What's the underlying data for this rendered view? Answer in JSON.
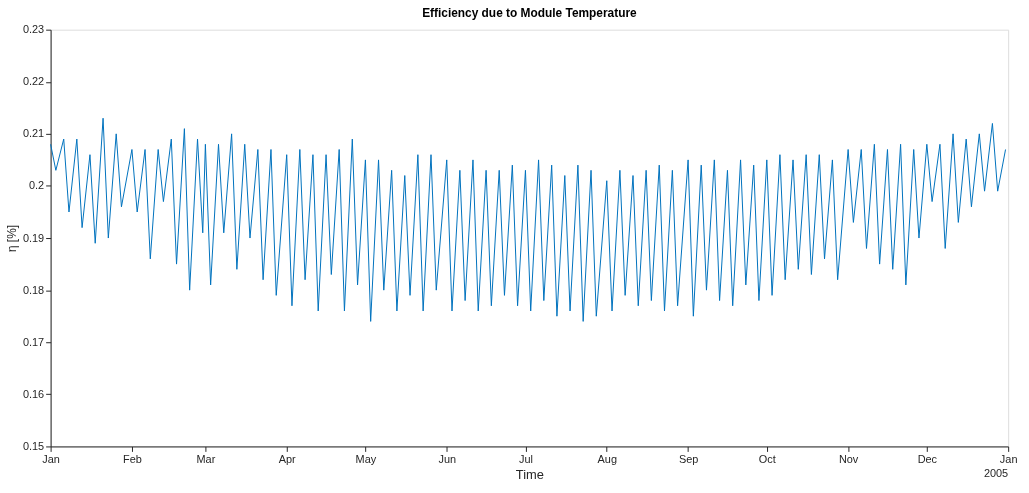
{
  "chart_data": {
    "type": "line",
    "title": "Efficiency due to Module Temperature",
    "xlabel": "Time",
    "ylabel": "η [%]",
    "annotations": [
      "2005"
    ],
    "x": [
      "2005-01-01",
      "2005-01-03",
      "2005-01-06",
      "2005-01-08",
      "2005-01-11",
      "2005-01-13",
      "2005-01-16",
      "2005-01-18",
      "2005-01-21",
      "2005-01-23",
      "2005-01-26",
      "2005-01-28",
      "2005-02-01",
      "2005-02-03",
      "2005-02-06",
      "2005-02-08",
      "2005-02-11",
      "2005-02-13",
      "2005-02-16",
      "2005-02-18",
      "2005-02-21",
      "2005-02-23",
      "2005-02-26",
      "2005-02-28",
      "2005-03-01",
      "2005-03-03",
      "2005-03-06",
      "2005-03-08",
      "2005-03-11",
      "2005-03-13",
      "2005-03-16",
      "2005-03-18",
      "2005-03-21",
      "2005-03-23",
      "2005-03-26",
      "2005-03-28",
      "2005-04-01",
      "2005-04-03",
      "2005-04-06",
      "2005-04-08",
      "2005-04-11",
      "2005-04-13",
      "2005-04-16",
      "2005-04-18",
      "2005-04-21",
      "2005-04-23",
      "2005-04-26",
      "2005-04-28",
      "2005-05-01",
      "2005-05-03",
      "2005-05-06",
      "2005-05-08",
      "2005-05-11",
      "2005-05-13",
      "2005-05-16",
      "2005-05-18",
      "2005-05-21",
      "2005-05-23",
      "2005-05-26",
      "2005-05-28",
      "2005-06-01",
      "2005-06-03",
      "2005-06-06",
      "2005-06-08",
      "2005-06-11",
      "2005-06-13",
      "2005-06-16",
      "2005-06-18",
      "2005-06-21",
      "2005-06-23",
      "2005-06-26",
      "2005-06-28",
      "2005-07-01",
      "2005-07-03",
      "2005-07-06",
      "2005-07-08",
      "2005-07-11",
      "2005-07-13",
      "2005-07-16",
      "2005-07-18",
      "2005-07-21",
      "2005-07-23",
      "2005-07-26",
      "2005-07-28",
      "2005-08-01",
      "2005-08-03",
      "2005-08-06",
      "2005-08-08",
      "2005-08-11",
      "2005-08-13",
      "2005-08-16",
      "2005-08-18",
      "2005-08-21",
      "2005-08-23",
      "2005-08-26",
      "2005-08-28",
      "2005-09-01",
      "2005-09-03",
      "2005-09-06",
      "2005-09-08",
      "2005-09-11",
      "2005-09-13",
      "2005-09-16",
      "2005-09-18",
      "2005-09-21",
      "2005-09-23",
      "2005-09-26",
      "2005-09-28",
      "2005-10-01",
      "2005-10-03",
      "2005-10-06",
      "2005-10-08",
      "2005-10-11",
      "2005-10-13",
      "2005-10-16",
      "2005-10-18",
      "2005-10-21",
      "2005-10-23",
      "2005-10-26",
      "2005-10-28",
      "2005-11-01",
      "2005-11-03",
      "2005-11-06",
      "2005-11-08",
      "2005-11-11",
      "2005-11-13",
      "2005-11-16",
      "2005-11-18",
      "2005-11-21",
      "2005-11-23",
      "2005-11-26",
      "2005-11-28",
      "2005-12-01",
      "2005-12-03",
      "2005-12-06",
      "2005-12-08",
      "2005-12-11",
      "2005-12-13",
      "2005-12-16",
      "2005-12-18",
      "2005-12-21",
      "2005-12-23",
      "2005-12-26",
      "2005-12-28",
      "2005-12-31"
    ],
    "series": [
      {
        "color": "#0072bd",
        "values": [
          0.208,
          0.203,
          0.209,
          0.195,
          0.209,
          0.192,
          0.206,
          0.189,
          0.213,
          0.19,
          0.21,
          0.196,
          0.207,
          0.195,
          0.207,
          0.186,
          0.207,
          0.197,
          0.209,
          0.185,
          0.211,
          0.18,
          0.209,
          0.191,
          0.208,
          0.181,
          0.208,
          0.191,
          0.21,
          0.184,
          0.208,
          0.19,
          0.207,
          0.182,
          0.207,
          0.179,
          0.206,
          0.177,
          0.207,
          0.182,
          0.206,
          0.176,
          0.206,
          0.183,
          0.207,
          0.176,
          0.209,
          0.181,
          0.205,
          0.174,
          0.205,
          0.18,
          0.203,
          0.176,
          0.202,
          0.179,
          0.206,
          0.176,
          0.206,
          0.18,
          0.205,
          0.176,
          0.203,
          0.178,
          0.205,
          0.176,
          0.203,
          0.177,
          0.203,
          0.179,
          0.204,
          0.177,
          0.203,
          0.176,
          0.205,
          0.178,
          0.204,
          0.175,
          0.202,
          0.176,
          0.204,
          0.174,
          0.203,
          0.175,
          0.201,
          0.176,
          0.203,
          0.179,
          0.202,
          0.177,
          0.203,
          0.178,
          0.204,
          0.176,
          0.203,
          0.177,
          0.205,
          0.175,
          0.204,
          0.18,
          0.205,
          0.178,
          0.203,
          0.177,
          0.205,
          0.181,
          0.204,
          0.178,
          0.205,
          0.179,
          0.206,
          0.182,
          0.205,
          0.184,
          0.206,
          0.183,
          0.206,
          0.186,
          0.205,
          0.182,
          0.207,
          0.193,
          0.207,
          0.188,
          0.208,
          0.185,
          0.207,
          0.184,
          0.208,
          0.181,
          0.207,
          0.19,
          0.208,
          0.197,
          0.208,
          0.188,
          0.21,
          0.193,
          0.209,
          0.196,
          0.21,
          0.199,
          0.212,
          0.199,
          0.207
        ]
      }
    ],
    "xlim": [
      "2005-01-01",
      "2006-01-01"
    ],
    "xticks": [
      {
        "value": "2005-01-01",
        "label": "Jan"
      },
      {
        "value": "2005-02-01",
        "label": "Feb"
      },
      {
        "value": "2005-03-01",
        "label": "Mar"
      },
      {
        "value": "2005-04-01",
        "label": "Apr"
      },
      {
        "value": "2005-05-01",
        "label": "May"
      },
      {
        "value": "2005-06-01",
        "label": "Jun"
      },
      {
        "value": "2005-07-01",
        "label": "Jul"
      },
      {
        "value": "2005-08-01",
        "label": "Aug"
      },
      {
        "value": "2005-09-01",
        "label": "Sep"
      },
      {
        "value": "2005-10-01",
        "label": "Oct"
      },
      {
        "value": "2005-11-01",
        "label": "Nov"
      },
      {
        "value": "2005-12-01",
        "label": "Dec"
      },
      {
        "value": "2006-01-01",
        "label": "Jan"
      }
    ],
    "ylim": [
      0.15,
      0.23
    ],
    "yticks": [
      0.15,
      0.16,
      0.17,
      0.18,
      0.19,
      0.2,
      0.21,
      0.22,
      0.23
    ],
    "grid": false,
    "marker": "none",
    "line_style": "solid"
  }
}
